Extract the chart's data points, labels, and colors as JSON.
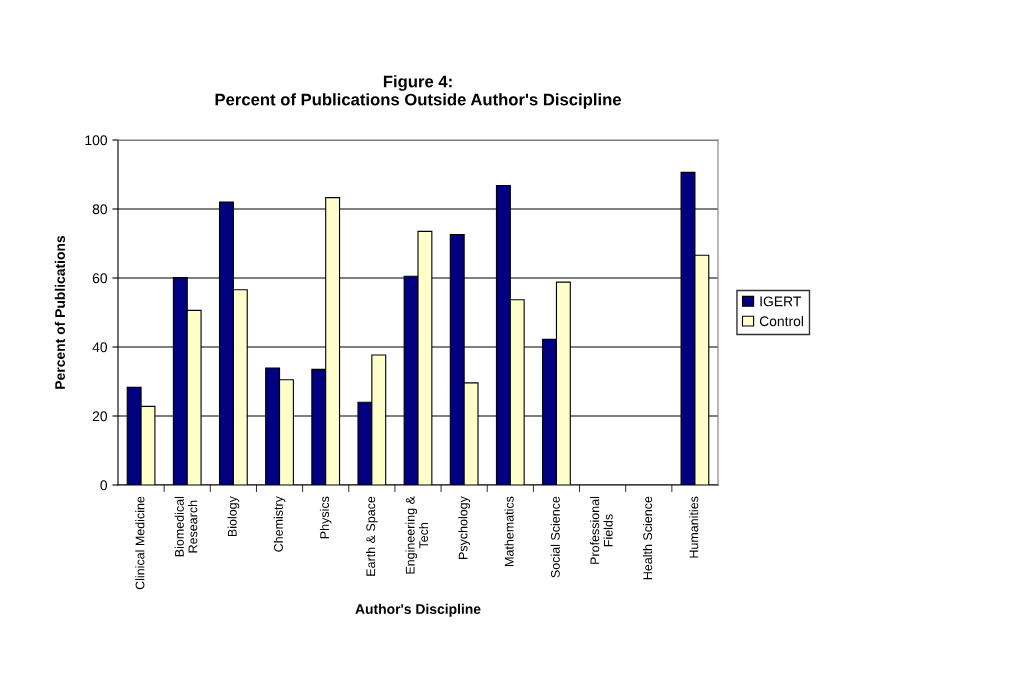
{
  "chart_data": {
    "type": "bar",
    "title": "Figure 4:\nPercent of Publications Outside Author's Discipline",
    "xlabel": "Author's Discipline",
    "ylabel": "Percent of Publications",
    "categories": [
      "Clinical Medicine",
      "Biomedical\nResearch",
      "Biology",
      "Chemistry",
      "Physics",
      "Earth & Space",
      "Engineering &\nTech",
      "Psychology",
      "Mathematics",
      "Social Science",
      "Professional\nFields",
      "Health Science",
      "Humanities"
    ],
    "series": [
      {
        "name": "IGERT",
        "color": "#000080",
        "values": [
          28.3,
          60.1,
          82.0,
          33.9,
          33.5,
          24.0,
          60.5,
          72.6,
          86.8,
          42.2,
          null,
          null,
          90.6
        ]
      },
      {
        "name": "Control",
        "color": "#ffffcc",
        "values": [
          22.8,
          50.6,
          56.6,
          30.5,
          83.3,
          37.7,
          73.5,
          29.6,
          53.7,
          58.8,
          null,
          null,
          66.6
        ]
      }
    ],
    "ylim": [
      0,
      100
    ],
    "yticks": [
      0,
      20,
      40,
      60,
      80,
      100
    ],
    "grid": "y",
    "legend": "right"
  }
}
